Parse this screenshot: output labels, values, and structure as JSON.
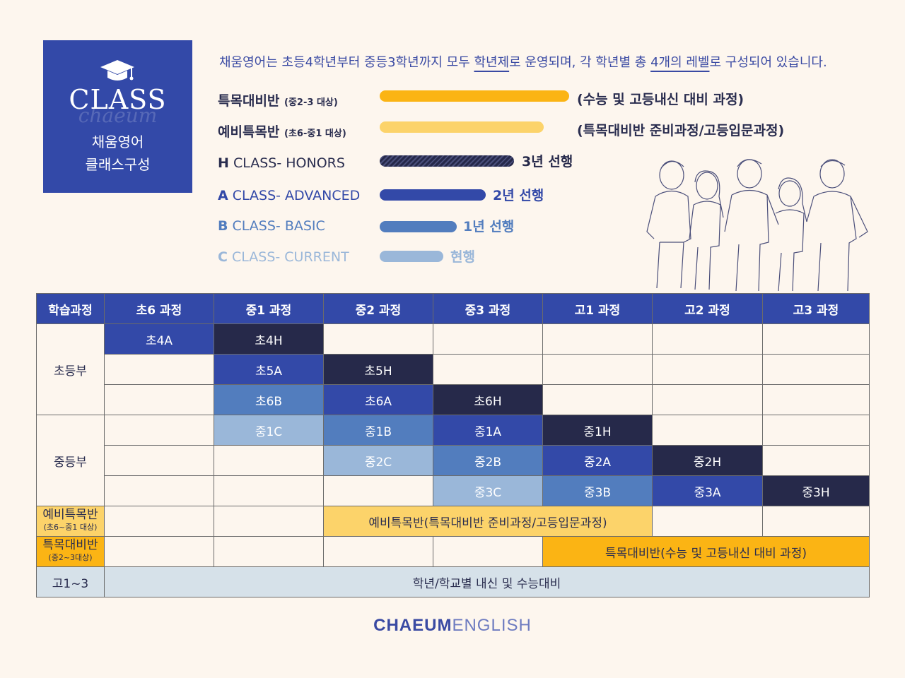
{
  "badge": {
    "title": "CLASS",
    "script": "chaeum",
    "line1": "채움영어",
    "line2": "클래스구성"
  },
  "intro": {
    "p1": "채움영어는 초등4학년부터 중등3학년까지 모두 ",
    "u1": "학년제",
    "p2": "로 운영되며, 각 학년별 총 ",
    "u2": "4개의 레벨",
    "p3": "로 구성되어 있습니다."
  },
  "legend": [
    {
      "label": "특목대비반",
      "sub": "(중2-3 대상)",
      "note": "(수능 및 고등내신 대비 과정)"
    },
    {
      "label": "예비특목반",
      "sub": "(초6-중1 대상)",
      "note": "(특목대비반 준비과정/고등입문과정)"
    },
    {
      "letter": "H",
      "label": " CLASS- HONORS",
      "note": "3년 선행"
    },
    {
      "letter": "A",
      "label": " CLASS- ADVANCED",
      "note": "2년 선행"
    },
    {
      "letter": "B",
      "label": " CLASS- BASIC",
      "note": "1년 선행"
    },
    {
      "letter": "C",
      "label": " CLASS- CURRENT",
      "note": "현행"
    }
  ],
  "colors": {
    "dark": "#26294a",
    "blue": "#3349a8",
    "mid": "#527dbe",
    "light": "#9ab7d9",
    "yellow": "#fcd36a",
    "orange": "#fbb414",
    "gray": "#d6e1e9"
  },
  "table": {
    "headers": [
      "학습과정",
      "초6 과정",
      "중1 과정",
      "중2 과정",
      "중3 과정",
      "고1 과정",
      "고2 과정",
      "고3 과정"
    ],
    "group_elem": "초등부",
    "group_mid": "중등부",
    "cells": {
      "r1c1": "초4A",
      "r1c2": "초4H",
      "r2c2": "초5A",
      "r2c3": "초5H",
      "r3c2": "초6B",
      "r3c3": "초6A",
      "r3c4": "초6H",
      "r4c2": "중1C",
      "r4c3": "중1B",
      "r4c4": "중1A",
      "r4c5": "중1H",
      "r5c3": "중2C",
      "r5c4": "중2B",
      "r5c5": "중2A",
      "r5c6": "중2H",
      "r6c4": "중3C",
      "r6c5": "중3B",
      "r6c6": "중3A",
      "r6c7": "중3H"
    },
    "pre": {
      "label": "예비특목반",
      "sub": "(초6~중1 대상)",
      "text": "예비특목반(특목대비반 준비과정/고등입문과정)"
    },
    "spec": {
      "label": "특목대비반",
      "sub": "(중2~3대상)",
      "text": "특목대비반(수능 및 고등내신 대비 과정)"
    },
    "high": {
      "label": "고1~3",
      "text": "학년/학교별 내신 및 수능대비"
    }
  },
  "footer": {
    "bold": "CHAEUM",
    "light": "ENGLISH"
  }
}
